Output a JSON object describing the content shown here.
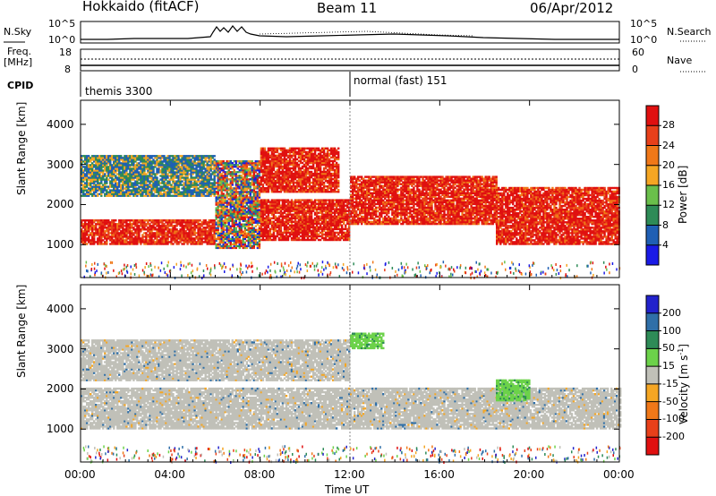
{
  "header": {
    "title_left": "Hokkaido (fitACF)",
    "title_center": "Beam 11",
    "title_right": "06/Apr/2012"
  },
  "side_labels": {
    "nsky": "N.Sky",
    "freq": "Freq.",
    "freq_unit": "[MHz]",
    "cpid": "CPID",
    "nsearch": "N.Search",
    "nave": "Nave"
  },
  "top_axes": {
    "nsky_ticks": [
      "10^5",
      "10^0"
    ],
    "nsearch_ticks": [
      "10^5",
      "10^0"
    ],
    "freq_ticks": [
      "18",
      "8"
    ],
    "nave_ticks": [
      "60",
      "0"
    ]
  },
  "cpid_segments": [
    {
      "label": "themis 3300",
      "start_hour": 0
    },
    {
      "label": "normal (fast) 151",
      "start_hour": 12
    }
  ],
  "chart_data": [
    {
      "type": "heatmap",
      "name": "power",
      "ylabel": "Slant Range [km]",
      "xlim": [
        0,
        24
      ],
      "ylim": [
        180,
        4600
      ],
      "yticks": [
        "1000",
        "2000",
        "3000",
        "4000"
      ],
      "colorbar": {
        "label": "Power [dB]",
        "ticks": [
          "4",
          "8",
          "12",
          "16",
          "20",
          "24",
          "28"
        ],
        "colors": [
          "#1a1ae6",
          "#1f5fb4",
          "#2e8b57",
          "#6abf4b",
          "#f5a623",
          "#f07818",
          "#e8401a",
          "#e01010"
        ]
      },
      "bands": [
        {
          "start": 0,
          "end": 6,
          "range": [
            1000,
            1600
          ],
          "level": "high"
        },
        {
          "start": 6,
          "end": 8,
          "range": [
            900,
            3100
          ],
          "level": "mixed"
        },
        {
          "start": 8,
          "end": 12,
          "range": [
            1100,
            2100
          ],
          "level": "high"
        },
        {
          "start": 12,
          "end": 18.5,
          "range": [
            1500,
            2700
          ],
          "level": "high"
        },
        {
          "start": 18.5,
          "end": 24,
          "range": [
            1000,
            2400
          ],
          "level": "high"
        },
        {
          "start": 0,
          "end": 6,
          "range": [
            2200,
            3200
          ],
          "level": "low"
        },
        {
          "start": 8,
          "end": 11.5,
          "range": [
            2300,
            3400
          ],
          "level": "high"
        }
      ]
    },
    {
      "type": "heatmap",
      "name": "velocity",
      "ylabel": "Slant Range [km]",
      "xlabel": "Time UT",
      "xlim": [
        0,
        24
      ],
      "ylim": [
        180,
        4600
      ],
      "xticks": [
        "00:00",
        "04:00",
        "08:00",
        "12:00",
        "16:00",
        "20:00",
        "00:00"
      ],
      "yticks": [
        "1000",
        "2000",
        "3000",
        "4000"
      ],
      "colorbar": {
        "label": "Velocity [m s",
        "label_sup": "-1",
        "label_end": "]",
        "ticks": [
          "200",
          "100",
          "50",
          "15",
          "-15",
          "-50",
          "-100",
          "-200"
        ],
        "colors": [
          "#2222cc",
          "#2f6fa8",
          "#2e8b57",
          "#6cd24a",
          "#c0c0b8",
          "#f5a623",
          "#f07818",
          "#e8401a",
          "#e01010"
        ]
      },
      "bands": [
        {
          "start": 0,
          "end": 24,
          "range": [
            1000,
            2000
          ],
          "value": 0
        },
        {
          "start": 0,
          "end": 12,
          "range": [
            2200,
            3200
          ],
          "value": 0
        },
        {
          "start": 12,
          "end": 13.5,
          "range": [
            3000,
            3400
          ],
          "value": 60
        },
        {
          "start": 18.5,
          "end": 20,
          "range": [
            1700,
            2200
          ],
          "value": 60
        }
      ]
    }
  ]
}
